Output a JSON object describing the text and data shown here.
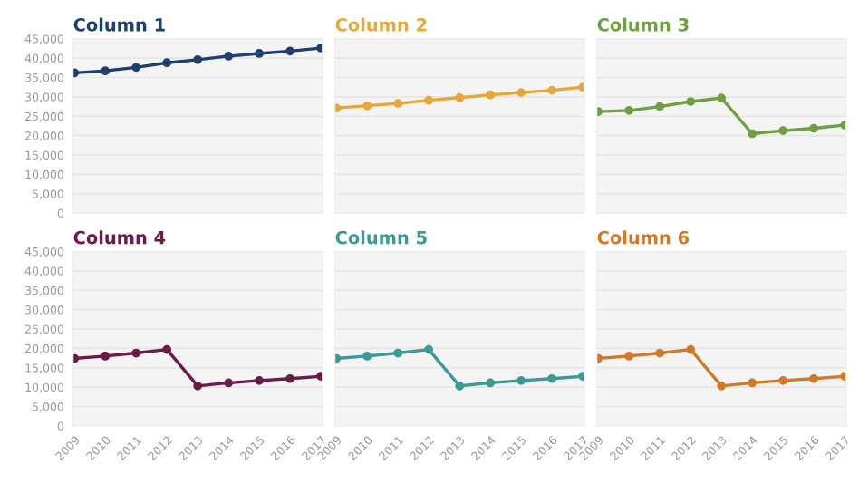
{
  "chart_data": [
    {
      "type": "line",
      "title": "Column 1",
      "categories": [
        "2009",
        "2010",
        "2011",
        "2012",
        "2013",
        "2014",
        "2015",
        "2016",
        "2017"
      ],
      "series": [
        {
          "color": "#1f3f6e",
          "values": [
            36200,
            36700,
            37600,
            38800,
            39600,
            40500,
            41200,
            41800,
            42600
          ]
        }
      ],
      "ylim": [
        0,
        45000
      ],
      "yticks": [
        {
          "value": 0,
          "label": "0"
        },
        {
          "value": 5000,
          "label": "5,000"
        },
        {
          "value": 10000,
          "label": "10,000"
        },
        {
          "value": 15000,
          "label": "15,000"
        },
        {
          "value": 20000,
          "label": "20,000"
        },
        {
          "value": 25000,
          "label": "25,000"
        },
        {
          "value": 30000,
          "label": "30,000"
        },
        {
          "value": 35000,
          "label": "35,000"
        },
        {
          "value": 40000,
          "label": "40,000"
        },
        {
          "value": 45000,
          "label": "45,000"
        }
      ],
      "grid": "y",
      "marker": "circle",
      "line_style": "solid",
      "tick_labels": "y"
    },
    {
      "type": "line",
      "title": "Column 2",
      "categories": [
        "2009",
        "2010",
        "2011",
        "2012",
        "2013",
        "2014",
        "2015",
        "2016",
        "2017"
      ],
      "series": [
        {
          "color": "#e8a838",
          "values": [
            27100,
            27700,
            28300,
            29100,
            29800,
            30500,
            31100,
            31700,
            32500
          ]
        }
      ],
      "ylim": [
        0,
        45000
      ],
      "yticks": [
        0,
        5000,
        10000,
        15000,
        20000,
        25000,
        30000,
        35000,
        40000,
        45000
      ],
      "grid": "y",
      "marker": "circle",
      "line_style": "solid",
      "tick_labels": false
    },
    {
      "type": "line",
      "title": "Column 3",
      "categories": [
        "2009",
        "2010",
        "2011",
        "2012",
        "2013",
        "2014",
        "2015",
        "2016",
        "2017"
      ],
      "series": [
        {
          "color": "#6ea040",
          "values": [
            26200,
            26500,
            27500,
            28800,
            29700,
            20500,
            21300,
            21900,
            22700
          ]
        }
      ],
      "ylim": [
        0,
        45000
      ],
      "yticks": [
        0,
        5000,
        10000,
        15000,
        20000,
        25000,
        30000,
        35000,
        40000,
        45000
      ],
      "grid": "y",
      "marker": "circle",
      "line_style": "solid",
      "tick_labels": false
    },
    {
      "type": "line",
      "title": "Column 4",
      "categories": [
        "2009",
        "2010",
        "2011",
        "2012",
        "2013",
        "2014",
        "2015",
        "2016",
        "2017"
      ],
      "series": [
        {
          "color": "#6b1a4a",
          "values": [
            17400,
            18000,
            18800,
            19700,
            10300,
            11100,
            11700,
            12200,
            12800
          ]
        }
      ],
      "ylim": [
        0,
        45000
      ],
      "yticks": [
        {
          "value": 0,
          "label": "0"
        },
        {
          "value": 5000,
          "label": "5,000"
        },
        {
          "value": 10000,
          "label": "10,000"
        },
        {
          "value": 15000,
          "label": "15,000"
        },
        {
          "value": 20000,
          "label": "20,000"
        },
        {
          "value": 25000,
          "label": "25,000"
        },
        {
          "value": 30000,
          "label": "30,000"
        },
        {
          "value": 35000,
          "label": "35,000"
        },
        {
          "value": 40000,
          "label": "40,000"
        },
        {
          "value": 45000,
          "label": "45,000"
        }
      ],
      "grid": "y",
      "marker": "circle",
      "line_style": "solid"
    },
    {
      "type": "line",
      "title": "Column 5",
      "categories": [
        "2009",
        "2010",
        "2011",
        "2012",
        "2013",
        "2014",
        "2015",
        "2016",
        "2017"
      ],
      "series": [
        {
          "color": "#3a9a95",
          "values": [
            17400,
            18000,
            18800,
            19700,
            10300,
            11100,
            11700,
            12200,
            12800
          ]
        }
      ],
      "ylim": [
        0,
        45000
      ],
      "yticks": [
        0,
        5000,
        10000,
        15000,
        20000,
        25000,
        30000,
        35000,
        40000,
        45000
      ],
      "grid": "y",
      "marker": "circle",
      "line_style": "solid",
      "tick_labels": "x"
    },
    {
      "type": "line",
      "title": "Column 6",
      "categories": [
        "2009",
        "2010",
        "2011",
        "2012",
        "2013",
        "2014",
        "2015",
        "2016",
        "2017"
      ],
      "series": [
        {
          "color": "#d07a28",
          "values": [
            17400,
            18000,
            18800,
            19700,
            10300,
            11100,
            11700,
            12200,
            12800
          ]
        }
      ],
      "ylim": [
        0,
        45000
      ],
      "yticks": [
        0,
        5000,
        10000,
        15000,
        20000,
        25000,
        30000,
        35000,
        40000,
        45000
      ],
      "grid": "y",
      "marker": "circle",
      "line_style": "solid",
      "tick_labels": "x"
    }
  ]
}
